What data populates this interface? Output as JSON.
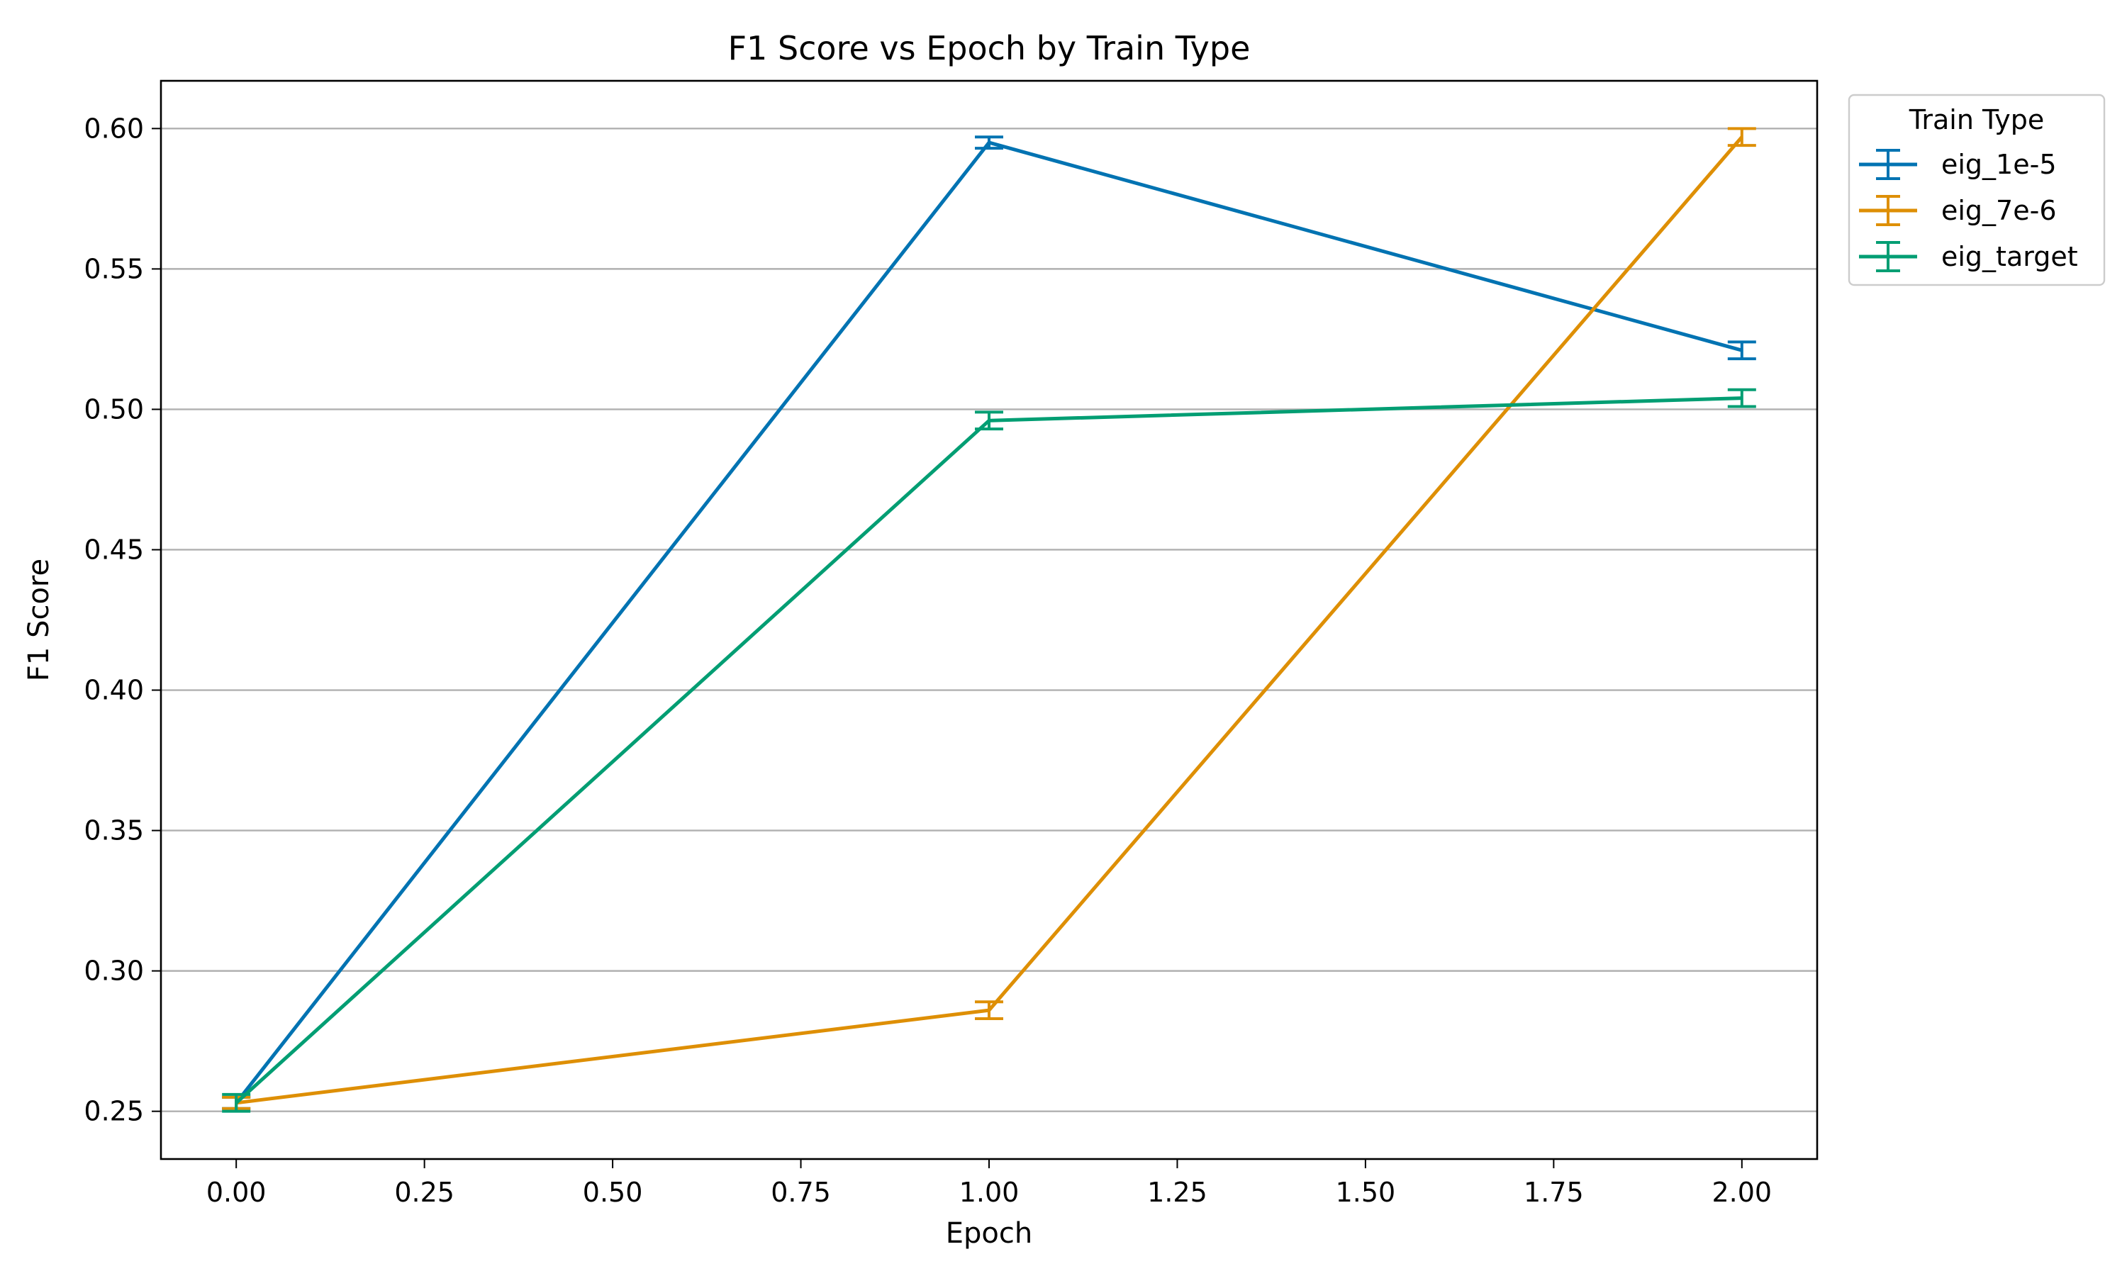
{
  "chart_data": {
    "type": "line",
    "title": "F1 Score vs Epoch by Train Type",
    "xlabel": "Epoch",
    "ylabel": "F1 Score",
    "xlim": [
      -0.1,
      2.1
    ],
    "ylim": [
      0.233,
      0.617
    ],
    "x_ticks": [
      0.0,
      0.25,
      0.5,
      0.75,
      1.0,
      1.25,
      1.5,
      1.75,
      2.0
    ],
    "x_tick_labels": [
      "0.00",
      "0.25",
      "0.50",
      "0.75",
      "1.00",
      "1.25",
      "1.50",
      "1.75",
      "2.00"
    ],
    "y_ticks": [
      0.25,
      0.3,
      0.35,
      0.4,
      0.45,
      0.5,
      0.55,
      0.6
    ],
    "y_tick_labels": [
      "0.25",
      "0.30",
      "0.35",
      "0.40",
      "0.45",
      "0.50",
      "0.55",
      "0.60"
    ],
    "grid": "horizontal",
    "legend": {
      "title": "Train Type",
      "placement": "outside-top-right"
    },
    "x": [
      0,
      1,
      2
    ],
    "series": [
      {
        "name": "eig_1e-5",
        "color": "#0173b2",
        "values": [
          0.253,
          0.595,
          0.521
        ],
        "errors": [
          0.002,
          0.002,
          0.003
        ]
      },
      {
        "name": "eig_7e-6",
        "color": "#de8f05",
        "values": [
          0.253,
          0.286,
          0.597
        ],
        "errors": [
          0.002,
          0.003,
          0.003
        ]
      },
      {
        "name": "eig_target",
        "color": "#029e73",
        "values": [
          0.253,
          0.496,
          0.504
        ],
        "errors": [
          0.003,
          0.003,
          0.003
        ]
      }
    ]
  }
}
